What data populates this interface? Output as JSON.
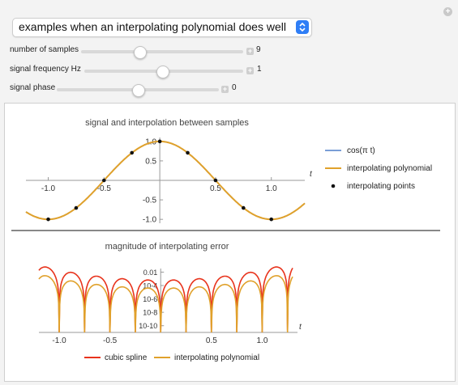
{
  "dropdown": {
    "selected": "examples when an interpolating polynomial does well"
  },
  "controls": [
    {
      "label": "number of samples",
      "value": "9",
      "slider_fraction": 0.36
    },
    {
      "label": "signal frequency Hz",
      "value": "1",
      "slider_fraction": 0.49
    },
    {
      "label": "signal phase",
      "value": "0",
      "slider_fraction": 0.5
    }
  ],
  "colors": {
    "cos": "#4f7ec9",
    "poly": "#e0a12b",
    "spline": "#e8331c",
    "points": "#111111"
  },
  "chart_data": [
    {
      "type": "line",
      "title": "signal and interpolation between samples",
      "xlabel": "t",
      "xlim": [
        -1.2,
        1.3
      ],
      "ylim": [
        -1.1,
        1.1
      ],
      "xticks": [
        "-1.0",
        "-0.5",
        "0.5",
        "1.0"
      ],
      "yticks": [
        "1.0",
        "0.5",
        "-0.5",
        "-1.0"
      ],
      "series": [
        {
          "name": "cos(π t)",
          "function": "cos(pi*t)"
        },
        {
          "name": "interpolating polynomial",
          "function": "cos(pi*t)"
        }
      ],
      "points_name": "interpolating points",
      "points": [
        [
          -1.0,
          -1.0
        ],
        [
          -0.75,
          -0.707
        ],
        [
          -0.5,
          0.0
        ],
        [
          -0.25,
          0.707
        ],
        [
          0.0,
          1.0
        ],
        [
          0.25,
          0.707
        ],
        [
          0.5,
          0.0
        ],
        [
          0.75,
          -0.707
        ],
        [
          1.0,
          -1.0
        ]
      ],
      "legend": [
        "cos(π t)",
        "interpolating polynomial",
        "interpolating points"
      ]
    },
    {
      "type": "line",
      "title": "magnitude of interpolating error",
      "xlabel": "t",
      "yscale": "log",
      "xlim": [
        -1.2,
        1.3
      ],
      "ylim_log10": [
        -11,
        -0.5
      ],
      "xticks": [
        "-1.0",
        "-0.5",
        "0.5",
        "1.0"
      ],
      "ytick_labels": [
        "0.01",
        "10-4",
        "10-6",
        "10-8",
        "10-10"
      ],
      "series": [
        {
          "name": "cubic spline",
          "peak_log10_end": -1.7,
          "peak_log10_mid": -3.2
        },
        {
          "name": "interpolating polynomial",
          "peak_log10_end": -3.0,
          "peak_log10_mid": -4.4
        }
      ],
      "legend": [
        "cubic spline",
        "interpolating polynomial"
      ]
    }
  ]
}
